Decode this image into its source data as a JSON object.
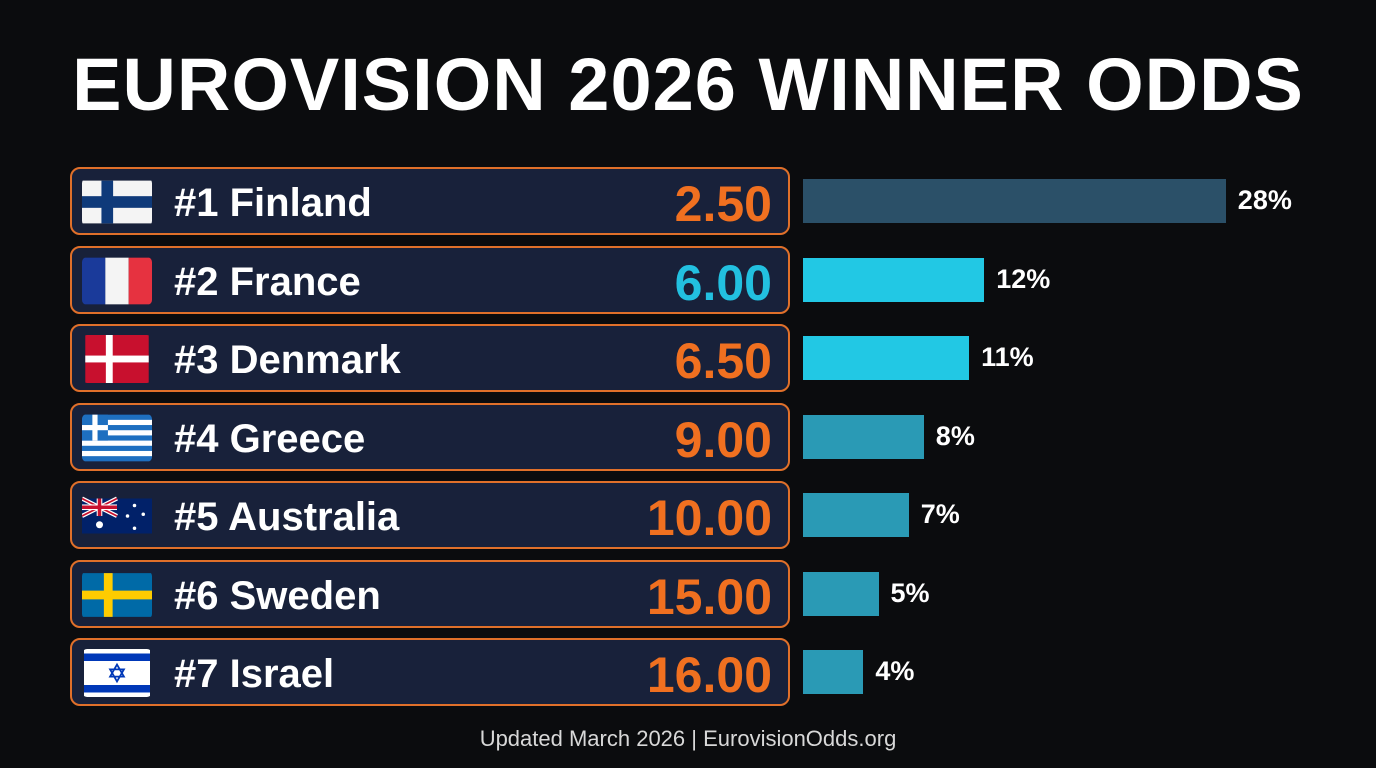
{
  "title": "EUROVISION 2026 WINNER ODDS",
  "footer": "Updated March 2026 | EurovisionOdds.org",
  "colors": {
    "background": "#0b0c0e",
    "row_bg": "#18213a",
    "row_border": "#e0702a",
    "odds_default": "#f07020",
    "odds_highlight": "#22c0e0"
  },
  "chart_data": {
    "type": "bar",
    "orientation": "horizontal",
    "title": "EUROVISION 2026 WINNER ODDS",
    "categories": [
      "Finland",
      "France",
      "Denmark",
      "Greece",
      "Australia",
      "Sweden",
      "Israel"
    ],
    "rows": [
      {
        "rank": "#1",
        "country": "Finland",
        "label": "#1 Finland",
        "odds": "2.50",
        "probability": 28,
        "pct_label": "28%",
        "flag": "finland-flag",
        "bar_color": "#2b5068",
        "odds_color": "#f07020"
      },
      {
        "rank": "#2",
        "country": "France",
        "label": "#2 France",
        "odds": "6.00",
        "probability": 12,
        "pct_label": "12%",
        "flag": "france-flag",
        "bar_color": "#22c8e4",
        "odds_color": "#22c0e0"
      },
      {
        "rank": "#3",
        "country": "Denmark",
        "label": "#3 Denmark",
        "odds": "6.50",
        "probability": 11,
        "pct_label": "11%",
        "flag": "denmark-flag",
        "bar_color": "#22c8e4",
        "odds_color": "#f07020"
      },
      {
        "rank": "#4",
        "country": "Greece",
        "label": "#4 Greece",
        "odds": "9.00",
        "probability": 8,
        "pct_label": "8%",
        "flag": "greece-flag",
        "bar_color": "#2a9ab5",
        "odds_color": "#f07020"
      },
      {
        "rank": "#5",
        "country": "Australia",
        "label": "#5 Australia",
        "odds": "10.00",
        "probability": 7,
        "pct_label": "7%",
        "flag": "australia-flag",
        "bar_color": "#2a9ab5",
        "odds_color": "#f07020"
      },
      {
        "rank": "#6",
        "country": "Sweden",
        "label": "#6 Sweden",
        "odds": "15.00",
        "probability": 5,
        "pct_label": "5%",
        "flag": "sweden-flag",
        "bar_color": "#2a9ab5",
        "odds_color": "#f07020"
      },
      {
        "rank": "#7",
        "country": "Israel",
        "label": "#7 Israel",
        "odds": "16.00",
        "probability": 4,
        "pct_label": "4%",
        "flag": "israel-flag",
        "bar_color": "#2a9ab5",
        "odds_color": "#f07020"
      }
    ],
    "unit": "%",
    "grid": false,
    "legend": "none"
  }
}
